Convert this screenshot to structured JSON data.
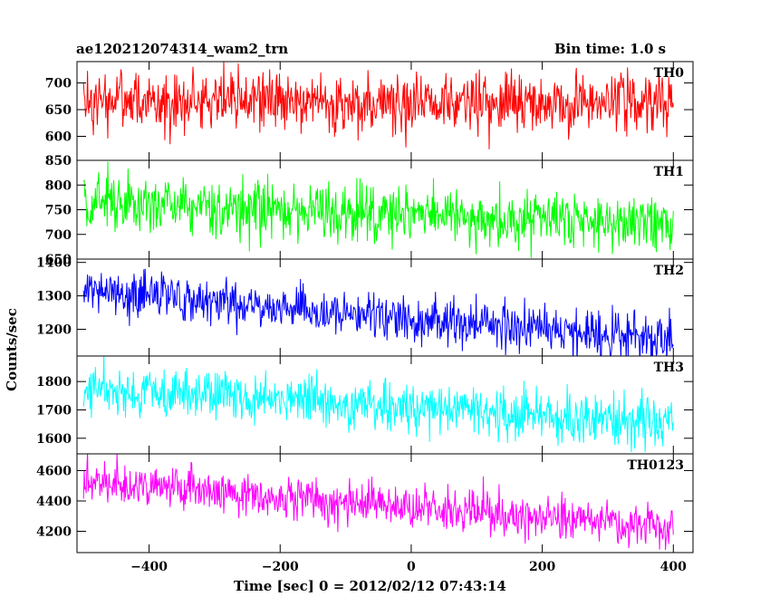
{
  "header": {
    "title": "ae120212074314_wam2_trn",
    "bin_time": "Bin time: 1.0 s"
  },
  "chart_data": {
    "type": "line",
    "xlabel": "Time [sec] 0 = 2012/02/12 07:43:14",
    "ylabel": "Counts/sec",
    "xlim": [
      -510,
      430
    ],
    "xticks": [
      -400,
      -200,
      0,
      200,
      400
    ],
    "x_range_data": [
      -500,
      400
    ],
    "panels": [
      {
        "name": "TH0",
        "color": "#ff0000",
        "ylim": [
          555,
          740
        ],
        "yticks": [
          600,
          650,
          700
        ],
        "ytick_labels": [
          "600",
          "650",
          "700"
        ],
        "trend": {
          "start": 663,
          "end": 663
        },
        "noise_sd": 28
      },
      {
        "name": "TH1",
        "color": "#00ff00",
        "ylim": [
          650,
          850
        ],
        "yticks": [
          650,
          700,
          750,
          800,
          850
        ],
        "ytick_labels": [
          "650",
          "700",
          "750",
          "800",
          "850"
        ],
        "trend": {
          "start": 765,
          "end": 718
        },
        "noise_sd": 28
      },
      {
        "name": "TH2",
        "color": "#0000ff",
        "ylim": [
          1120,
          1410
        ],
        "yticks": [
          1200,
          1300,
          1400
        ],
        "ytick_labels": [
          "1200",
          "1300",
          "1400"
        ],
        "trend": {
          "start": 1320,
          "end": 1165
        },
        "noise_sd": 36
      },
      {
        "name": "TH3",
        "color": "#00ffff",
        "ylim": [
          1545,
          1890
        ],
        "yticks": [
          1600,
          1700,
          1800
        ],
        "ytick_labels": [
          "1600",
          "1700",
          "1800"
        ],
        "trend": {
          "start": 1775,
          "end": 1650
        },
        "noise_sd": 42
      },
      {
        "name": "TH0123",
        "color": "#ff00ff",
        "ylim": [
          4060,
          4710
        ],
        "yticks": [
          4200,
          4400,
          4600
        ],
        "ytick_labels": [
          "4200",
          "4400",
          "4600"
        ],
        "trend": {
          "start": 4530,
          "end": 4220
        },
        "noise_sd": 68
      }
    ]
  }
}
